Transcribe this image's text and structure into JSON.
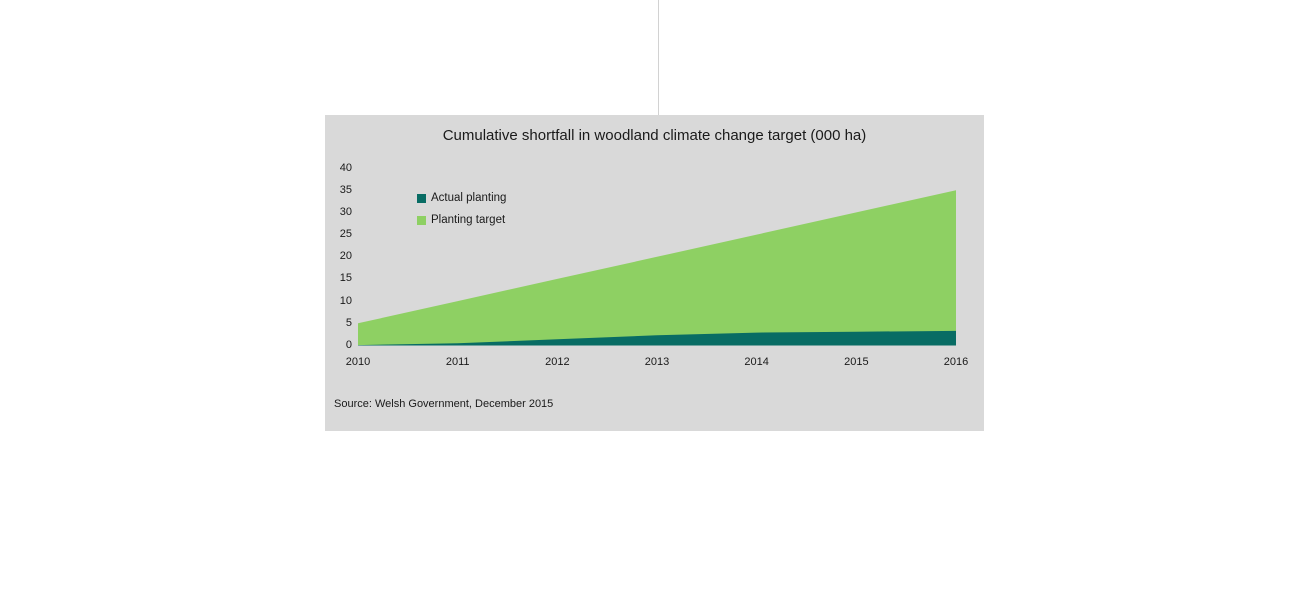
{
  "page": {
    "background": "#ffffff",
    "divider_color": "#d2d2d2"
  },
  "panel": {
    "background": "#d9d9d9"
  },
  "chart_data": {
    "type": "area",
    "title": "Cumulative shortfall in woodland climate change target (000 ha)",
    "categories": [
      "2010",
      "2011",
      "2012",
      "2013",
      "2014",
      "2015",
      "2016"
    ],
    "series": [
      {
        "name": "Actual planting",
        "color": "#086c64",
        "values": [
          0.1,
          0.5,
          1.4,
          2.3,
          2.9,
          3.1,
          3.3
        ]
      },
      {
        "name": "Planting target",
        "color": "#8ed063",
        "values": [
          5,
          10,
          15,
          20,
          25,
          30,
          35
        ]
      }
    ],
    "ylim": [
      0,
      40
    ],
    "yticks": [
      0,
      5,
      10,
      15,
      20,
      25,
      30,
      35,
      40
    ],
    "ytick_step": 5,
    "grid": false,
    "legend_position": "top-left-inside",
    "text_color": "#1a1a1a"
  },
  "source": {
    "text": "Source: Welsh Government, December 2015"
  }
}
